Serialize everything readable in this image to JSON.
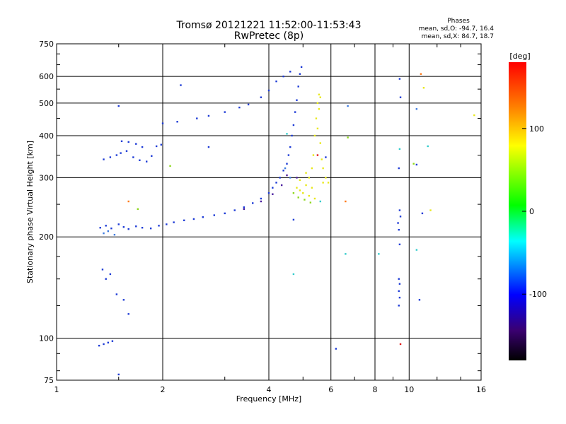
{
  "chart_data": {
    "type": "scatter",
    "title": "Tromsø 20121221 11:52:00-11:53:43",
    "subtitle": "RwPretec (8p)",
    "xlabel": "Frequency [MHz]",
    "ylabel": "Stationary phase Virtual Height [km]",
    "x_scale": "log",
    "y_scale": "log",
    "xlim": [
      1,
      16
    ],
    "ylim": [
      75,
      750
    ],
    "x_ticks": [
      "1",
      "2",
      "4",
      "6",
      "8",
      "10",
      "16"
    ],
    "y_ticks": [
      "75",
      "100",
      "200",
      "300",
      "400",
      "500",
      "600",
      "750"
    ],
    "grid": true,
    "phase_info": {
      "header": "Phases",
      "o_line": "mean, sd,O: -94.7, 16.4",
      "x_line": "mean, sd,X:  84.7, 18.7"
    },
    "colorbar": {
      "label": "[deg]",
      "range": [
        -180,
        180
      ],
      "ticks": [
        "100",
        "0",
        "-100"
      ],
      "tick_values": [
        100,
        0,
        -100
      ],
      "colors": [
        "#ff0000",
        "#ffff00",
        "#00ff00",
        "#00ffff",
        "#0000ff",
        "#000000"
      ]
    },
    "series": [
      {
        "color": "#1d3bd6",
        "points": [
          [
            1.33,
            213
          ],
          [
            1.38,
            216
          ],
          [
            1.43,
            212
          ],
          [
            1.5,
            218
          ],
          [
            1.55,
            214
          ],
          [
            1.6,
            211
          ],
          [
            1.68,
            215
          ],
          [
            1.75,
            213
          ],
          [
            1.85,
            212
          ],
          [
            1.95,
            216
          ],
          [
            2.05,
            218
          ],
          [
            2.15,
            221
          ],
          [
            2.3,
            224
          ],
          [
            2.45,
            226
          ],
          [
            2.6,
            229
          ],
          [
            2.8,
            232
          ],
          [
            3.0,
            235
          ],
          [
            3.2,
            240
          ],
          [
            3.4,
            245
          ],
          [
            3.6,
            252
          ],
          [
            3.8,
            260
          ],
          [
            4.0,
            270
          ],
          [
            4.1,
            280
          ],
          [
            4.2,
            290
          ],
          [
            4.3,
            300
          ],
          [
            4.4,
            315
          ],
          [
            4.5,
            330
          ],
          [
            4.55,
            350
          ],
          [
            4.6,
            370
          ],
          [
            4.65,
            400
          ],
          [
            4.7,
            430
          ],
          [
            4.75,
            470
          ],
          [
            4.8,
            510
          ],
          [
            4.85,
            560
          ],
          [
            4.9,
            610
          ],
          [
            4.95,
            640
          ],
          [
            1.36,
            340
          ],
          [
            1.42,
            345
          ],
          [
            1.48,
            350
          ],
          [
            1.52,
            355
          ],
          [
            1.58,
            360
          ],
          [
            1.65,
            345
          ],
          [
            1.72,
            338
          ],
          [
            1.8,
            335
          ],
          [
            1.86,
            348
          ],
          [
            1.92,
            372
          ],
          [
            1.98,
            376
          ],
          [
            1.53,
            385
          ],
          [
            1.6,
            383
          ],
          [
            1.68,
            378
          ],
          [
            1.75,
            370
          ],
          [
            2.0,
            435
          ],
          [
            2.2,
            440
          ],
          [
            2.5,
            450
          ],
          [
            2.7,
            458
          ],
          [
            3.0,
            470
          ],
          [
            3.3,
            485
          ],
          [
            3.5,
            495
          ],
          [
            3.8,
            520
          ],
          [
            4.0,
            545
          ],
          [
            4.2,
            580
          ],
          [
            4.4,
            600
          ],
          [
            4.6,
            620
          ],
          [
            1.32,
            95
          ],
          [
            1.36,
            96
          ],
          [
            1.4,
            97
          ],
          [
            1.44,
            98
          ],
          [
            1.35,
            160
          ],
          [
            1.38,
            150
          ],
          [
            1.42,
            155
          ],
          [
            1.48,
            135
          ],
          [
            1.55,
            130
          ],
          [
            1.6,
            118
          ],
          [
            1.5,
            78
          ],
          [
            1.5,
            490
          ],
          [
            2.25,
            565
          ],
          [
            2.7,
            370
          ],
          [
            4.7,
            225
          ],
          [
            5.8,
            345
          ],
          [
            6.2,
            93
          ],
          [
            9.35,
            320
          ],
          [
            9.4,
            240
          ],
          [
            9.45,
            230
          ],
          [
            9.3,
            220
          ],
          [
            9.35,
            210
          ],
          [
            9.4,
            190
          ],
          [
            9.35,
            150
          ],
          [
            9.4,
            145
          ],
          [
            9.35,
            138
          ],
          [
            9.4,
            132
          ],
          [
            9.35,
            125
          ],
          [
            9.4,
            590
          ],
          [
            9.45,
            520
          ],
          [
            10.5,
            328
          ],
          [
            10.7,
            130
          ],
          [
            10.9,
            235
          ]
        ]
      },
      {
        "color": "#3d7be0",
        "points": [
          [
            1.36,
            205
          ],
          [
            1.4,
            208
          ],
          [
            1.46,
            203
          ],
          [
            4.45,
            320
          ],
          [
            4.6,
            300
          ],
          [
            6.7,
            490
          ],
          [
            10.5,
            480
          ]
        ]
      },
      {
        "color": "#e8e81a",
        "points": [
          [
            4.8,
            280
          ],
          [
            4.9,
            275
          ],
          [
            5.0,
            270
          ],
          [
            5.1,
            285
          ],
          [
            5.2,
            300
          ],
          [
            5.3,
            320
          ],
          [
            5.35,
            350
          ],
          [
            5.4,
            400
          ],
          [
            5.45,
            450
          ],
          [
            5.5,
            500
          ],
          [
            5.55,
            530
          ],
          [
            5.6,
            520
          ],
          [
            5.55,
            480
          ],
          [
            5.5,
            420
          ],
          [
            5.6,
            380
          ],
          [
            5.65,
            340
          ],
          [
            5.7,
            320
          ],
          [
            5.8,
            300
          ],
          [
            5.9,
            290
          ],
          [
            5.7,
            290
          ],
          [
            5.4,
            260
          ],
          [
            5.2,
            265
          ],
          [
            4.9,
            295
          ],
          [
            5.1,
            310
          ],
          [
            5.3,
            280
          ],
          [
            11.0,
            555
          ],
          [
            11.5,
            240
          ],
          [
            15.3,
            460
          ]
        ]
      },
      {
        "color": "#8fd81f",
        "points": [
          [
            4.7,
            270
          ],
          [
            4.85,
            262
          ],
          [
            5.05,
            258
          ],
          [
            5.25,
            253
          ],
          [
            1.7,
            242
          ],
          [
            2.1,
            325
          ],
          [
            6.7,
            395
          ],
          [
            10.3,
            330
          ]
        ]
      },
      {
        "color": "#4a1e9e",
        "points": [
          [
            3.4,
            242
          ],
          [
            3.8,
            255
          ],
          [
            4.1,
            268
          ],
          [
            4.35,
            285
          ],
          [
            4.5,
            305
          ],
          [
            4.8,
            300
          ]
        ]
      },
      {
        "color": "#33cccc",
        "points": [
          [
            4.5,
            405
          ],
          [
            5.6,
            255
          ],
          [
            6.6,
            178
          ],
          [
            8.2,
            178
          ],
          [
            9.4,
            365
          ],
          [
            10.5,
            183
          ],
          [
            11.3,
            372
          ],
          [
            4.7,
            155
          ]
        ]
      },
      {
        "color": "#ff7a1a",
        "points": [
          [
            1.6,
            255
          ],
          [
            6.6,
            255
          ],
          [
            10.8,
            610
          ]
        ]
      },
      {
        "color": "#e01a1a",
        "points": [
          [
            9.45,
            96
          ],
          [
            5.5,
            350
          ]
        ]
      }
    ]
  }
}
